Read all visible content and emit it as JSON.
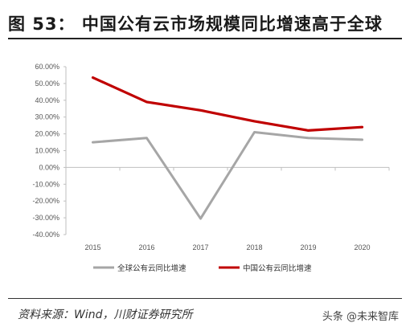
{
  "figure": {
    "title": "图 53：  中国公有云市场规模同比增速高于全球",
    "source": "资料来源：Wind，川财证券研究所",
    "watermark": "头条 @未来智库"
  },
  "colors": {
    "global": "#a6a6a6",
    "china": "#c00000",
    "grid": "#d9d9d9"
  },
  "chart_data": {
    "type": "line",
    "x": [
      "2015",
      "2016",
      "2017",
      "2018",
      "2019",
      "2020"
    ],
    "ylim": [
      -40,
      60
    ],
    "yticks": [
      60,
      50,
      40,
      30,
      20,
      10,
      0,
      -10,
      -20,
      -30,
      -40
    ],
    "ytick_labels": [
      "60.00%",
      "50.00%",
      "40.00%",
      "30.00%",
      "20.00%",
      "10.00%",
      "0.00%",
      "-10.00%",
      "-20.00%",
      "-30.00%",
      "-40.00%"
    ],
    "y_unit": "%",
    "legend_position": "bottom",
    "grid": false,
    "series": [
      {
        "name": "全球公有云同比增速",
        "color": "#a6a6a6",
        "values": [
          15.0,
          17.5,
          -30.5,
          21.0,
          17.5,
          16.5
        ]
      },
      {
        "name": "中国公有云同比增速",
        "color": "#c00000",
        "values": [
          53.5,
          39.0,
          34.0,
          27.5,
          22.0,
          24.0
        ]
      }
    ]
  }
}
